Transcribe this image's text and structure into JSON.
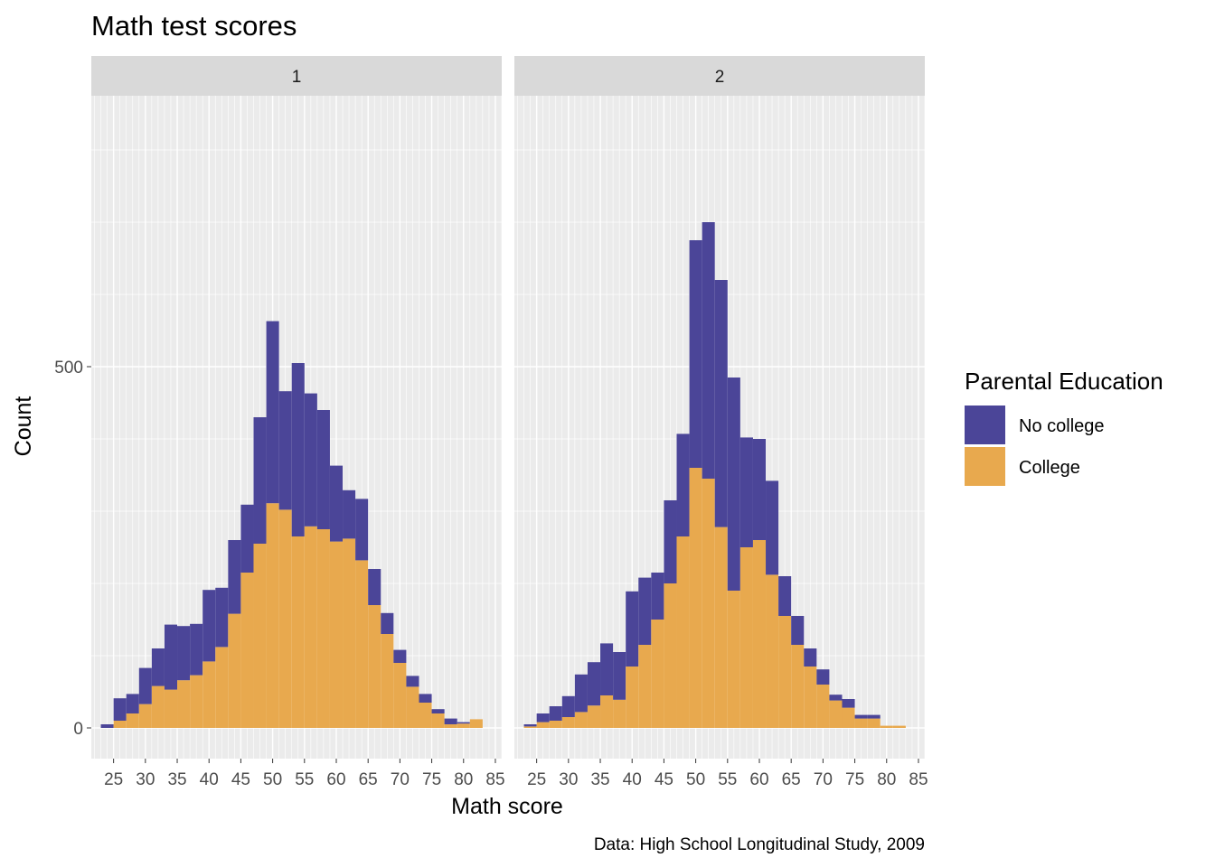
{
  "chart_data": {
    "type": "bar",
    "subtype": "stacked-histogram-facets",
    "title": "Math test scores",
    "xlabel": "Math score",
    "ylabel": "Count",
    "caption": "Data: High School Longitudinal Study, 2009",
    "xlim": [
      21.5,
      86
    ],
    "ylim": [
      -40,
      880
    ],
    "x_ticks": [
      25,
      30,
      35,
      40,
      45,
      50,
      55,
      60,
      65,
      70,
      75,
      80,
      85
    ],
    "y_ticks": [
      0,
      500
    ],
    "bin_width": 2,
    "bin_centers": [
      24,
      26,
      28,
      30,
      32,
      34,
      36,
      38,
      40,
      42,
      44,
      46,
      48,
      50,
      52,
      54,
      56,
      58,
      60,
      62,
      64,
      66,
      68,
      70,
      72,
      74,
      76,
      78,
      80,
      82
    ],
    "legend": {
      "title": "Parental Education",
      "position": "right",
      "entries": [
        "No college",
        "College"
      ]
    },
    "colors": {
      "No college": "#4b4598",
      "College": "#e8a94e",
      "panel_background": "#ebebeb",
      "strip_background": "#d9d9d9",
      "gridline": "#ffffff"
    },
    "panels": [
      {
        "label": "1",
        "series": [
          {
            "name": "College",
            "values": [
              0,
              10,
              20,
              33,
              58,
              53,
              66,
              73,
              92,
              112,
              158,
              215,
              255,
              311,
              302,
              265,
              279,
              275,
              258,
              262,
              232,
              170,
              130,
              90,
              57,
              35,
              20,
              5,
              6,
              12
            ]
          },
          {
            "name": "No college",
            "values": [
              5,
              31,
              27,
              50,
              52,
              90,
              75,
              71,
              99,
              82,
              102,
              94,
              175,
              252,
              164,
              240,
              184,
              165,
              105,
              67,
              85,
              50,
              29,
              18,
              15,
              12,
              6,
              8,
              2,
              0
            ]
          }
        ]
      },
      {
        "label": "2",
        "series": [
          {
            "name": "College",
            "values": [
              2,
              8,
              10,
              15,
              22,
              31,
              45,
              39,
              85,
              115,
              150,
              200,
              265,
              360,
              345,
              278,
              190,
              250,
              260,
              212,
              155,
              115,
              85,
              60,
              38,
              28,
              13,
              13,
              3,
              3
            ]
          },
          {
            "name": "No college",
            "values": [
              3,
              12,
              20,
              29,
              52,
              60,
              72,
              66,
              104,
              93,
              65,
              115,
              142,
              315,
              355,
              342,
              295,
              152,
              140,
              130,
              55,
              40,
              25,
              21,
              8,
              12,
              5,
              5,
              0,
              0
            ]
          }
        ]
      }
    ]
  }
}
